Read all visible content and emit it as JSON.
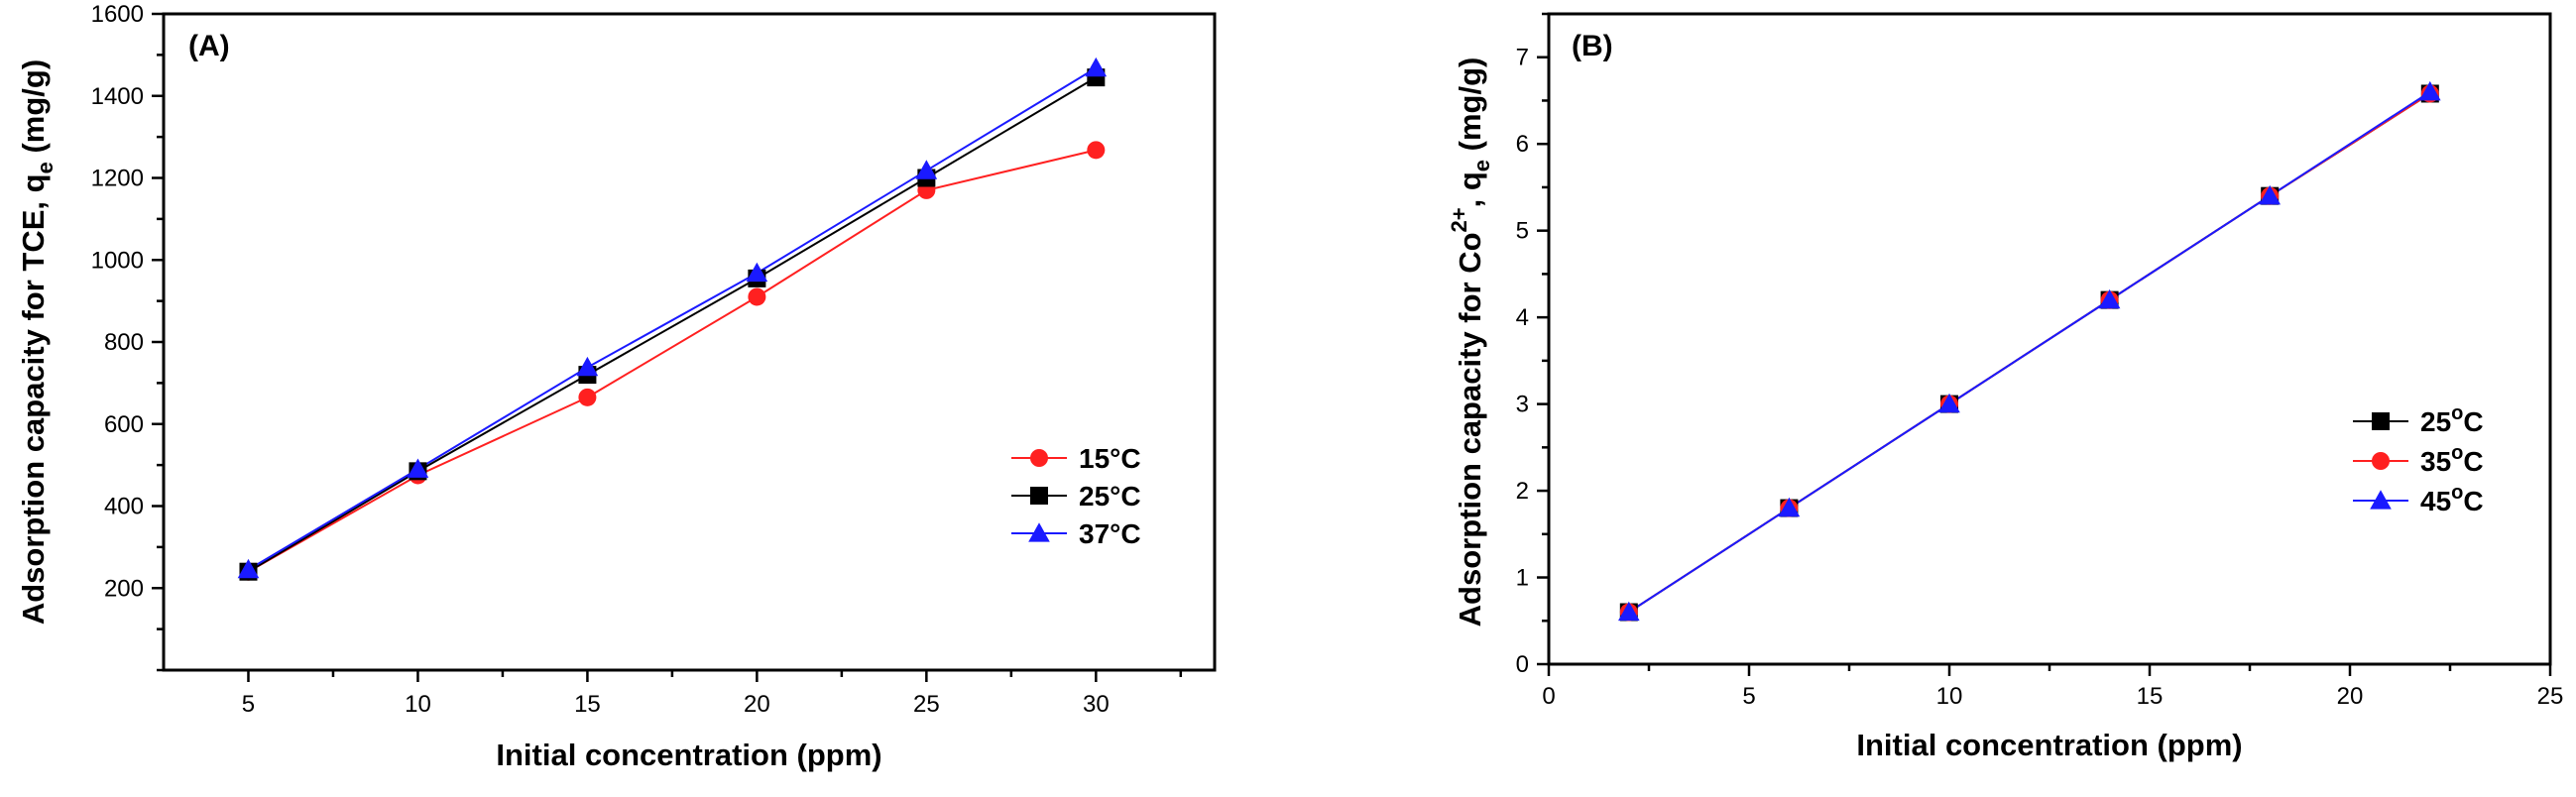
{
  "chart_data": [
    {
      "type": "line",
      "panel_label": "(A)",
      "xlabel": "Initial concentration (ppm)",
      "ylabel_prefix": "Adsorption capacity for TCE, q",
      "ylabel_sub": "e",
      "ylabel_suffix": " (mg/g)",
      "xlim": [
        2.5,
        33.5
      ],
      "ylim": [
        0,
        1600
      ],
      "xticks": [
        5,
        10,
        15,
        20,
        25,
        30
      ],
      "yticks": [
        200,
        400,
        600,
        800,
        1000,
        1200,
        1400,
        1600
      ],
      "legend_position": "center-right",
      "series": [
        {
          "name": "15°C",
          "color": "#ff2020",
          "marker": "circle",
          "x": [
            5,
            10,
            15,
            20,
            25,
            30
          ],
          "values": [
            240,
            475,
            665,
            910,
            1170,
            1268
          ]
        },
        {
          "name": "25°C",
          "color": "#000000",
          "marker": "square",
          "x": [
            5,
            10,
            15,
            20,
            25,
            30
          ],
          "values": [
            240,
            485,
            720,
            955,
            1200,
            1445
          ]
        },
        {
          "name": "37°C",
          "color": "#1a1aff",
          "marker": "triangle",
          "x": [
            5,
            10,
            15,
            20,
            25,
            30
          ],
          "values": [
            245,
            490,
            738,
            968,
            1218,
            1468
          ]
        }
      ]
    },
    {
      "type": "line",
      "panel_label": "(B)",
      "xlabel": "Initial concentration (ppm)",
      "ylabel_prefix": "Adsorption capacity for Co",
      "ylabel_sup": "2+",
      "ylabel_mid": ", q",
      "ylabel_sub": "e",
      "ylabel_suffix": " (mg/g)",
      "xlim": [
        0,
        25
      ],
      "ylim": [
        0,
        7.5
      ],
      "xticks": [
        0,
        5,
        10,
        15,
        20,
        25
      ],
      "yticks": [
        0,
        1,
        2,
        3,
        4,
        5,
        6,
        7
      ],
      "legend_position": "center-right",
      "series": [
        {
          "name": "25°C",
          "name_base": "25",
          "name_sup": "o",
          "name_unit": "C",
          "color": "#000000",
          "marker": "square",
          "x": [
            2,
            6,
            10,
            14,
            18,
            22
          ],
          "values": [
            0.6,
            1.8,
            3.0,
            4.2,
            5.4,
            6.58
          ]
        },
        {
          "name": "35°C",
          "name_base": "35",
          "name_sup": "o",
          "name_unit": "C",
          "color": "#ff2020",
          "marker": "circle",
          "x": [
            2,
            6,
            10,
            14,
            18,
            22
          ],
          "values": [
            0.6,
            1.8,
            3.0,
            4.2,
            5.4,
            6.58
          ]
        },
        {
          "name": "45°C",
          "name_base": "45",
          "name_sup": "o",
          "name_unit": "C",
          "color": "#1a1aff",
          "marker": "triangle",
          "x": [
            2,
            6,
            10,
            14,
            18,
            22
          ],
          "values": [
            0.6,
            1.8,
            3.0,
            4.2,
            5.4,
            6.6
          ]
        }
      ]
    }
  ]
}
